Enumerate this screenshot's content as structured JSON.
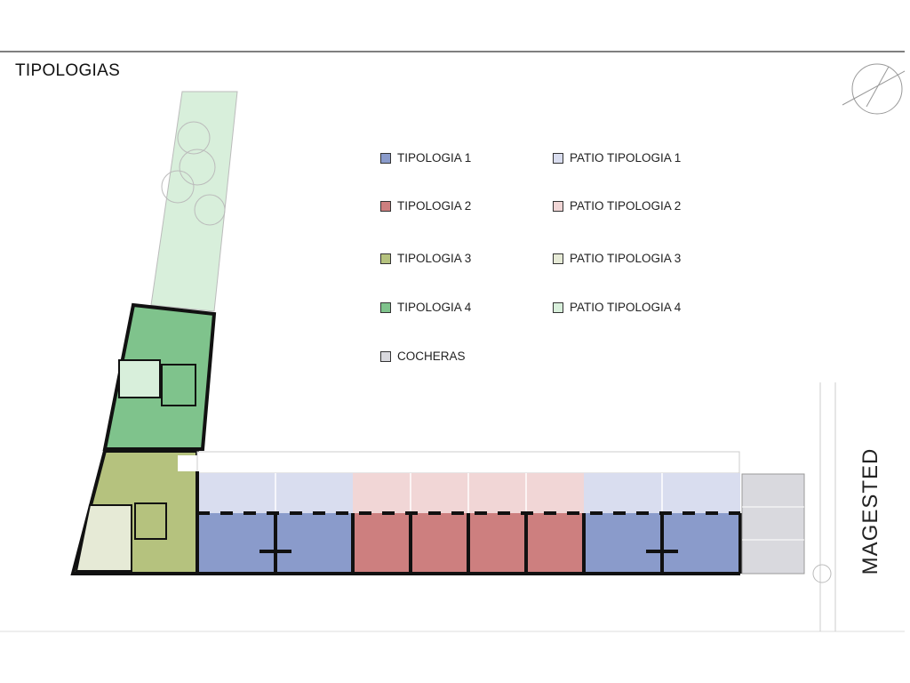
{
  "title": "TIPOLOGIAS",
  "street_label": "MAGESTED",
  "legend": [
    {
      "label": "TIPOLOGIA 1",
      "color": "#8a9bcb"
    },
    {
      "label": "TIPOLOGIA 2",
      "color": "#cd7f7f"
    },
    {
      "label": "TIPOLOGIA 3",
      "color": "#b5c27e"
    },
    {
      "label": "TIPOLOGIA 4",
      "color": "#7fc38c"
    },
    {
      "label": "COCHERAS",
      "color": "#d9d9de"
    },
    {
      "label": "PATIO TIPOLOGIA 1",
      "color": "#d9ddef"
    },
    {
      "label": "PATIO TIPOLOGIA 2",
      "color": "#f1d6d6"
    },
    {
      "label": "PATIO TIPOLOGIA 3",
      "color": "#e6ead6"
    },
    {
      "label": "PATIO TIPOLOGIA 4",
      "color": "#d8efdb"
    }
  ]
}
